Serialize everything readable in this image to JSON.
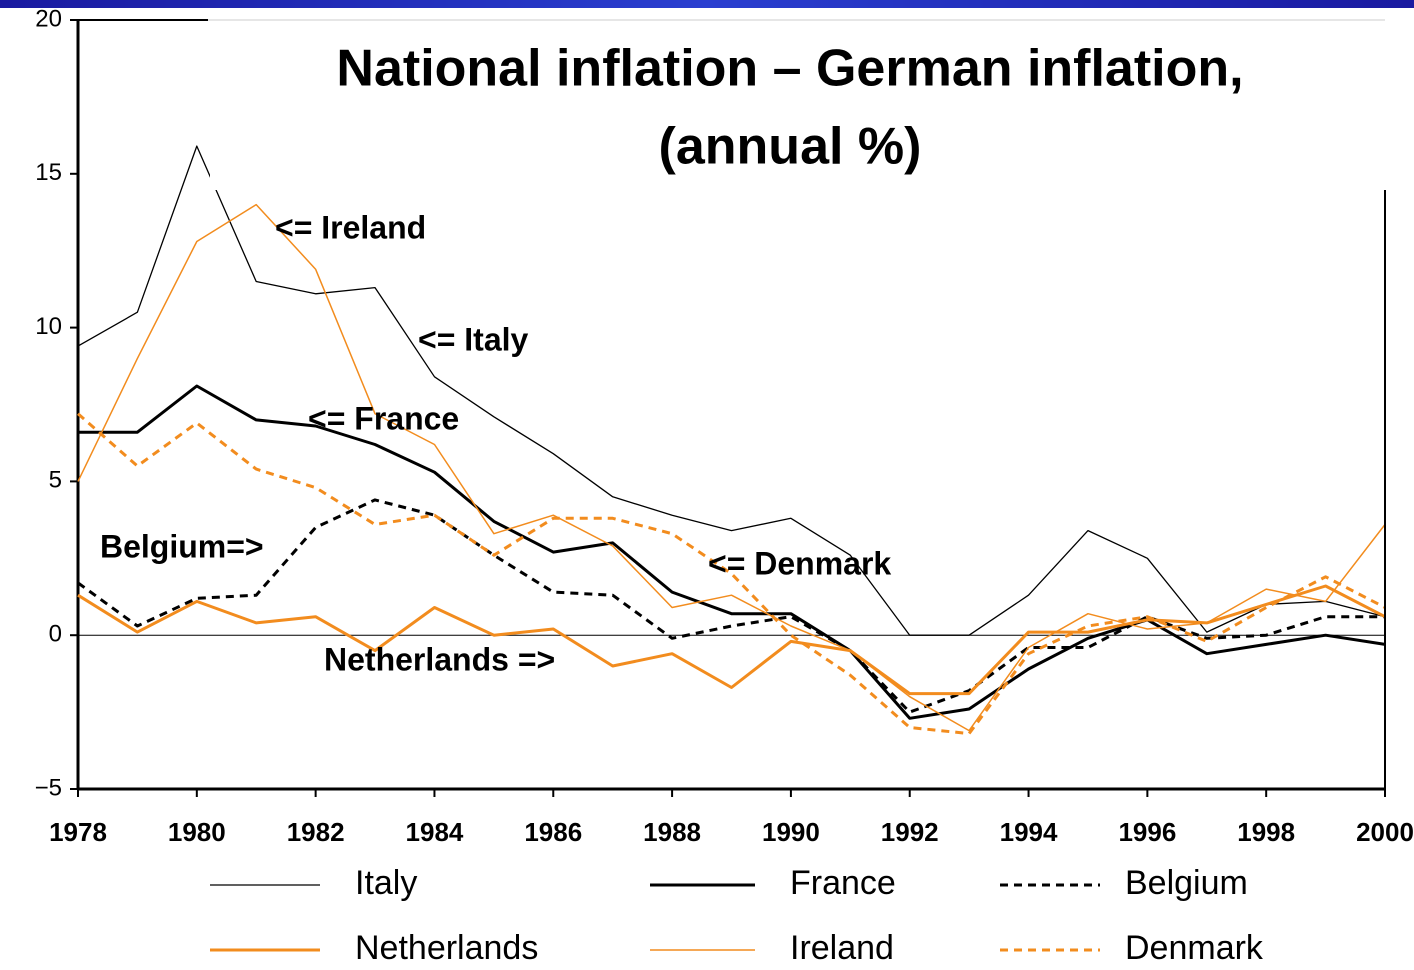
{
  "chart_data": {
    "type": "line",
    "title": [
      "National inflation – German inflation,",
      "(annual %)"
    ],
    "x": [
      1978,
      1979,
      1980,
      1981,
      1982,
      1983,
      1984,
      1985,
      1986,
      1987,
      1988,
      1989,
      1990,
      1991,
      1992,
      1993,
      1994,
      1995,
      1996,
      1997,
      1998,
      1999,
      2000
    ],
    "xlim": [
      1978,
      2000
    ],
    "xticks": [
      1978,
      1980,
      1982,
      1984,
      1986,
      1988,
      1990,
      1992,
      1994,
      1996,
      1998,
      2000
    ],
    "ylim": [
      -5,
      20
    ],
    "yticks": [
      {
        "value": -5,
        "label": "−5"
      },
      0,
      5,
      10,
      15,
      20
    ],
    "series": [
      {
        "name": "Italy",
        "color": "#000000",
        "linestyle": "solid",
        "linewidth": 1.3,
        "values": [
          9.4,
          10.5,
          15.9,
          11.5,
          11.1,
          11.3,
          8.4,
          7.1,
          5.9,
          4.5,
          3.9,
          3.4,
          3.8,
          2.6,
          0,
          0,
          1.3,
          3.4,
          2.5,
          0.1,
          1.0,
          1.1,
          0.6
        ]
      },
      {
        "name": "France",
        "color": "#000000",
        "linestyle": "solid",
        "linewidth": 3,
        "values": [
          6.6,
          6.6,
          8.1,
          7.0,
          6.8,
          6.2,
          5.3,
          3.7,
          2.7,
          3.0,
          1.4,
          0.7,
          0.7,
          -0.5,
          -2.7,
          -2.4,
          -1.1,
          -0.1,
          0.5,
          -0.6,
          -0.3,
          0.0,
          -0.3
        ]
      },
      {
        "name": "Belgium",
        "color": "#000000",
        "linestyle": "dashed",
        "linewidth": 3,
        "values": [
          1.7,
          0.3,
          1.2,
          1.3,
          3.5,
          4.4,
          3.9,
          2.6,
          1.4,
          1.3,
          -0.1,
          0.3,
          0.6,
          -0.5,
          -2.5,
          -1.8,
          -0.4,
          -0.4,
          0.6,
          -0.1,
          0.0,
          0.6,
          0.6
        ]
      },
      {
        "name": "Netherlands",
        "color": "#f28c1e",
        "linestyle": "solid",
        "linewidth": 3,
        "values": [
          1.3,
          0.1,
          1.1,
          0.4,
          0.6,
          -0.5,
          0.9,
          0.0,
          0.2,
          -1.0,
          -0.6,
          -1.7,
          -0.2,
          -0.5,
          -1.9,
          -1.9,
          0.1,
          0.1,
          0.5,
          0.4,
          1.0,
          1.6,
          0.6
        ]
      },
      {
        "name": "Ireland",
        "color": "#f28c1e",
        "linestyle": "solid",
        "linewidth": 1.5,
        "values": [
          5.0,
          9.0,
          12.8,
          14.0,
          11.9,
          7.2,
          6.2,
          3.3,
          3.9,
          2.9,
          0.9,
          1.3,
          0.3,
          -0.5,
          -2.0,
          -3.1,
          -0.4,
          0.7,
          0.2,
          0.4,
          1.5,
          1.1,
          3.6
        ]
      },
      {
        "name": "Denmark",
        "color": "#f28c1e",
        "linestyle": "dashed",
        "linewidth": 3,
        "values": [
          7.2,
          5.5,
          6.9,
          5.4,
          4.8,
          3.6,
          3.9,
          2.6,
          3.8,
          3.8,
          3.3,
          2.0,
          0.0,
          -1.3,
          -3.0,
          -3.2,
          -0.6,
          0.3,
          0.6,
          -0.2,
          0.9,
          1.9,
          0.9
        ]
      }
    ],
    "annotations": [
      "<= Ireland",
      "<= Italy",
      "<= France",
      "Belgium=>",
      "<= Denmark",
      "Netherlands =>"
    ]
  }
}
